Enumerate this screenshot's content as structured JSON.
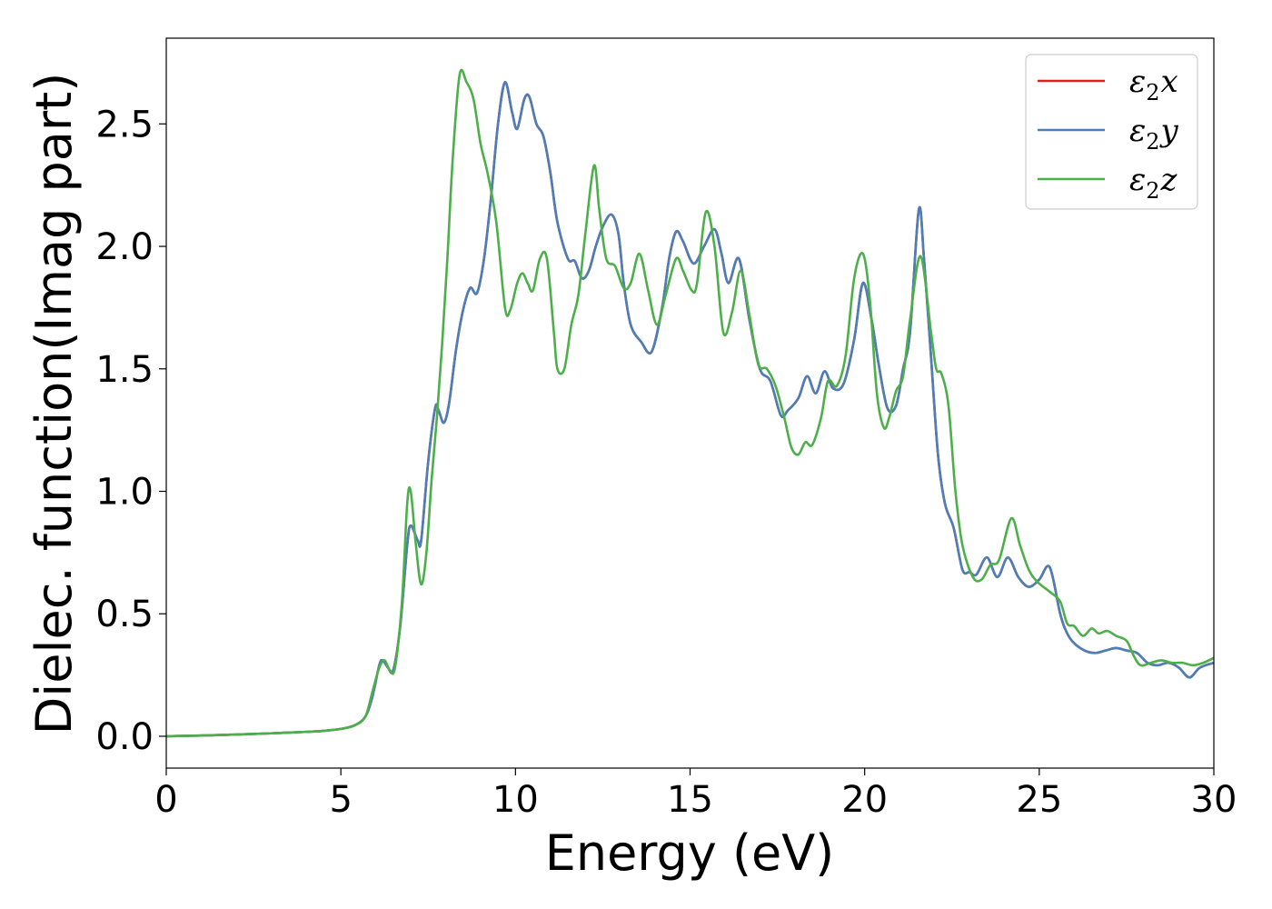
{
  "chart_data": {
    "type": "line",
    "xlabel": "Energy (eV)",
    "ylabel": "Dielec. function(Imag part)",
    "xlim": [
      0,
      30
    ],
    "ylim": [
      -0.13,
      2.85
    ],
    "xticks": [
      0,
      5,
      10,
      15,
      20,
      25,
      30
    ],
    "yticks": [
      "0.0",
      "0.5",
      "1.0",
      "1.5",
      "2.0",
      "2.5"
    ],
    "grid": false,
    "legend_position": "top-right",
    "series": [
      {
        "name": "ε2x",
        "label_base": "ε",
        "label_sub": "2",
        "label_suffix": "x",
        "color": "#e41a1c",
        "x": [
          0,
          1,
          2,
          3,
          4,
          4.5,
          5,
          5.4,
          5.7,
          5.9,
          6.1,
          6.2,
          6.35,
          6.5,
          6.7,
          6.9,
          7.0,
          7.2,
          7.3,
          7.5,
          7.7,
          7.8,
          7.95,
          8.1,
          8.3,
          8.5,
          8.7,
          8.9,
          9.1,
          9.3,
          9.5,
          9.7,
          9.9,
          10.05,
          10.25,
          10.4,
          10.6,
          10.8,
          11.0,
          11.2,
          11.5,
          11.7,
          11.9,
          12.1,
          12.3,
          12.5,
          12.75,
          12.95,
          13.1,
          13.3,
          13.6,
          13.9,
          14.2,
          14.4,
          14.6,
          14.8,
          15.1,
          15.4,
          15.7,
          15.9,
          16.1,
          16.4,
          16.7,
          17.0,
          17.3,
          17.6,
          17.8,
          18.1,
          18.35,
          18.6,
          18.85,
          19.1,
          19.4,
          19.7,
          19.95,
          20.2,
          20.4,
          20.65,
          20.9,
          21.1,
          21.3,
          21.55,
          21.7,
          21.9,
          22.1,
          22.3,
          22.55,
          22.8,
          23.0,
          23.2,
          23.5,
          23.8,
          24.1,
          24.4,
          24.7,
          25.0,
          25.3,
          25.6,
          25.8,
          26.0,
          26.3,
          26.6,
          26.9,
          27.2,
          27.5,
          27.8,
          28.1,
          28.4,
          28.7,
          29.0,
          29.3,
          29.6,
          30.0
        ],
        "y": [
          0.0,
          0.003,
          0.007,
          0.012,
          0.018,
          0.022,
          0.03,
          0.045,
          0.08,
          0.16,
          0.29,
          0.31,
          0.28,
          0.27,
          0.45,
          0.78,
          0.86,
          0.8,
          0.8,
          1.12,
          1.34,
          1.33,
          1.28,
          1.36,
          1.58,
          1.74,
          1.83,
          1.81,
          1.95,
          2.2,
          2.5,
          2.67,
          2.55,
          2.48,
          2.6,
          2.61,
          2.5,
          2.45,
          2.3,
          2.1,
          1.95,
          1.94,
          1.87,
          1.9,
          2.0,
          2.08,
          2.13,
          2.05,
          1.85,
          1.68,
          1.61,
          1.57,
          1.75,
          1.95,
          2.06,
          2.02,
          1.93,
          2.0,
          2.07,
          1.97,
          1.85,
          1.95,
          1.7,
          1.5,
          1.45,
          1.31,
          1.33,
          1.38,
          1.47,
          1.4,
          1.49,
          1.42,
          1.44,
          1.62,
          1.85,
          1.7,
          1.52,
          1.34,
          1.35,
          1.5,
          1.65,
          2.15,
          1.95,
          1.55,
          1.15,
          0.95,
          0.85,
          0.68,
          0.67,
          0.66,
          0.73,
          0.65,
          0.73,
          0.65,
          0.61,
          0.64,
          0.69,
          0.5,
          0.42,
          0.38,
          0.35,
          0.34,
          0.35,
          0.36,
          0.35,
          0.34,
          0.3,
          0.29,
          0.3,
          0.28,
          0.24,
          0.28,
          0.3
        ]
      },
      {
        "name": "ε2y",
        "label_base": "ε",
        "label_sub": "2",
        "label_suffix": "y",
        "color": "#4a7fb8",
        "x": [
          0,
          1,
          2,
          3,
          4,
          4.5,
          5,
          5.4,
          5.7,
          5.9,
          6.1,
          6.2,
          6.35,
          6.5,
          6.7,
          6.9,
          7.0,
          7.2,
          7.3,
          7.5,
          7.7,
          7.8,
          7.95,
          8.1,
          8.3,
          8.5,
          8.7,
          8.9,
          9.1,
          9.3,
          9.5,
          9.7,
          9.9,
          10.05,
          10.25,
          10.4,
          10.6,
          10.8,
          11.0,
          11.2,
          11.5,
          11.7,
          11.9,
          12.1,
          12.3,
          12.5,
          12.75,
          12.95,
          13.1,
          13.3,
          13.6,
          13.9,
          14.2,
          14.4,
          14.6,
          14.8,
          15.1,
          15.4,
          15.7,
          15.9,
          16.1,
          16.4,
          16.7,
          17.0,
          17.3,
          17.6,
          17.8,
          18.1,
          18.35,
          18.6,
          18.85,
          19.1,
          19.4,
          19.7,
          19.95,
          20.2,
          20.4,
          20.65,
          20.9,
          21.1,
          21.3,
          21.55,
          21.7,
          21.9,
          22.1,
          22.3,
          22.55,
          22.8,
          23.0,
          23.2,
          23.5,
          23.8,
          24.1,
          24.4,
          24.7,
          25.0,
          25.3,
          25.6,
          25.8,
          26.0,
          26.3,
          26.6,
          26.9,
          27.2,
          27.5,
          27.8,
          28.1,
          28.4,
          28.7,
          29.0,
          29.3,
          29.6,
          30.0
        ],
        "y": [
          0.0,
          0.003,
          0.007,
          0.012,
          0.018,
          0.022,
          0.03,
          0.045,
          0.08,
          0.16,
          0.29,
          0.31,
          0.28,
          0.27,
          0.45,
          0.78,
          0.86,
          0.8,
          0.8,
          1.12,
          1.34,
          1.33,
          1.28,
          1.36,
          1.58,
          1.74,
          1.83,
          1.81,
          1.95,
          2.2,
          2.5,
          2.67,
          2.55,
          2.48,
          2.6,
          2.61,
          2.5,
          2.45,
          2.3,
          2.1,
          1.95,
          1.94,
          1.87,
          1.9,
          2.0,
          2.08,
          2.13,
          2.05,
          1.85,
          1.68,
          1.61,
          1.57,
          1.75,
          1.95,
          2.06,
          2.02,
          1.93,
          2.0,
          2.07,
          1.97,
          1.85,
          1.95,
          1.7,
          1.5,
          1.45,
          1.31,
          1.33,
          1.38,
          1.47,
          1.4,
          1.49,
          1.42,
          1.44,
          1.62,
          1.85,
          1.7,
          1.52,
          1.34,
          1.35,
          1.5,
          1.65,
          2.15,
          1.95,
          1.55,
          1.15,
          0.95,
          0.85,
          0.68,
          0.67,
          0.66,
          0.73,
          0.65,
          0.73,
          0.65,
          0.61,
          0.64,
          0.69,
          0.5,
          0.42,
          0.38,
          0.35,
          0.34,
          0.35,
          0.36,
          0.35,
          0.34,
          0.3,
          0.29,
          0.3,
          0.28,
          0.24,
          0.28,
          0.3
        ]
      },
      {
        "name": "ε2z",
        "label_base": "ε",
        "label_sub": "2",
        "label_suffix": "z",
        "color": "#4daf4a",
        "x": [
          0,
          1,
          2,
          3,
          4,
          4.5,
          5,
          5.4,
          5.7,
          5.9,
          6.1,
          6.25,
          6.4,
          6.55,
          6.75,
          6.9,
          7.0,
          7.15,
          7.3,
          7.45,
          7.6,
          7.75,
          7.9,
          8.05,
          8.2,
          8.4,
          8.6,
          8.8,
          9.0,
          9.2,
          9.45,
          9.7,
          9.85,
          10.05,
          10.2,
          10.35,
          10.5,
          10.7,
          10.9,
          11.1,
          11.2,
          11.4,
          11.6,
          11.8,
          12.0,
          12.25,
          12.4,
          12.6,
          12.85,
          13.1,
          13.3,
          13.55,
          13.8,
          14.05,
          14.3,
          14.6,
          14.8,
          15.05,
          15.2,
          15.45,
          15.7,
          15.95,
          16.2,
          16.45,
          16.7,
          16.95,
          17.2,
          17.45,
          17.7,
          17.9,
          18.1,
          18.3,
          18.5,
          18.75,
          18.95,
          19.2,
          19.45,
          19.7,
          19.95,
          20.15,
          20.35,
          20.55,
          20.7,
          20.9,
          21.1,
          21.3,
          21.6,
          21.9,
          22.05,
          22.2,
          22.4,
          22.6,
          22.8,
          23.1,
          23.35,
          23.6,
          23.85,
          24.2,
          24.45,
          24.7,
          24.95,
          25.3,
          25.6,
          25.8,
          26.0,
          26.25,
          26.5,
          26.7,
          26.95,
          27.2,
          27.5,
          27.7,
          27.9,
          28.2,
          28.5,
          28.8,
          29.1,
          29.4,
          29.7,
          30.0
        ],
        "y": [
          0.0,
          0.003,
          0.007,
          0.012,
          0.018,
          0.022,
          0.03,
          0.045,
          0.08,
          0.18,
          0.28,
          0.31,
          0.27,
          0.28,
          0.55,
          0.95,
          1.0,
          0.78,
          0.62,
          0.75,
          1.05,
          1.3,
          1.6,
          1.95,
          2.35,
          2.7,
          2.67,
          2.6,
          2.42,
          2.3,
          2.1,
          1.75,
          1.74,
          1.85,
          1.89,
          1.85,
          1.82,
          1.95,
          1.95,
          1.65,
          1.5,
          1.5,
          1.68,
          1.8,
          2.05,
          2.33,
          2.15,
          1.95,
          1.92,
          1.83,
          1.85,
          1.97,
          1.82,
          1.68,
          1.8,
          1.95,
          1.9,
          1.82,
          1.85,
          2.14,
          2.0,
          1.65,
          1.73,
          1.9,
          1.72,
          1.52,
          1.5,
          1.43,
          1.3,
          1.18,
          1.15,
          1.2,
          1.19,
          1.3,
          1.45,
          1.43,
          1.55,
          1.87,
          1.97,
          1.78,
          1.4,
          1.26,
          1.3,
          1.41,
          1.47,
          1.7,
          1.96,
          1.65,
          1.5,
          1.48,
          1.35,
          1.0,
          0.78,
          0.65,
          0.64,
          0.7,
          0.72,
          0.89,
          0.78,
          0.68,
          0.63,
          0.59,
          0.55,
          0.46,
          0.45,
          0.41,
          0.44,
          0.42,
          0.43,
          0.41,
          0.39,
          0.33,
          0.29,
          0.3,
          0.31,
          0.3,
          0.3,
          0.29,
          0.3,
          0.32
        ]
      }
    ]
  }
}
